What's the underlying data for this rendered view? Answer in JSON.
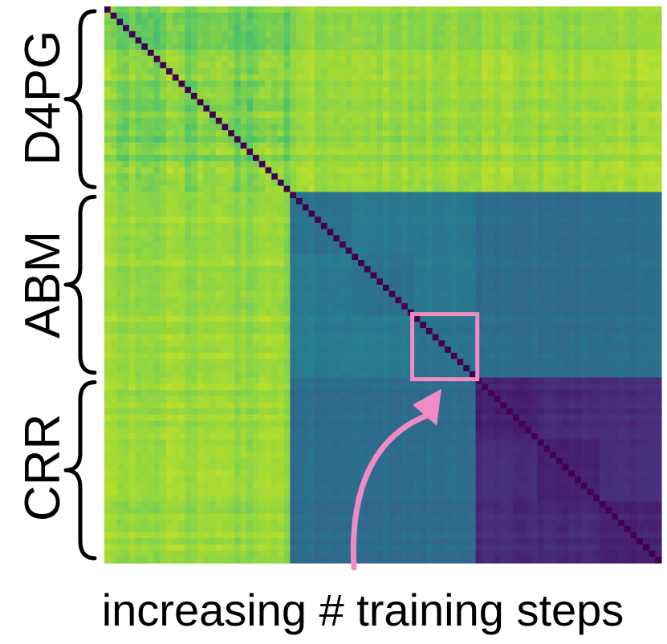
{
  "chart_data": {
    "type": "heatmap",
    "title": "",
    "xlabel": "increasing # training steps",
    "ylabel": "",
    "colormap": "viridis",
    "n_cells": 90,
    "groups": [
      "D4PG",
      "ABM",
      "CRR"
    ],
    "group_sizes": [
      30,
      30,
      30
    ],
    "block_levels": [
      [
        0.8,
        0.85,
        0.85
      ],
      [
        0.85,
        0.42,
        0.36
      ],
      [
        0.85,
        0.36,
        0.12
      ]
    ],
    "diagonal_level": 0.0,
    "highlight": {
      "cell_start": 50,
      "cell_end": 60
    },
    "annotation": {
      "type": "arrow",
      "color": "#f28bc4"
    }
  }
}
